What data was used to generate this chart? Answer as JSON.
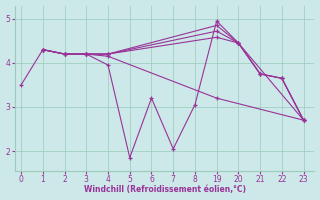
{
  "xlabel": "Windchill (Refroidissement éolien,°C)",
  "bg_color": "#cce8e8",
  "line_color": "#993399",
  "grid_color": "#99ccbb",
  "xtick_labels": [
    "0",
    "1",
    "2",
    "3",
    "4",
    "5",
    "6",
    "7",
    "8",
    "19",
    "20",
    "21",
    "22",
    "23"
  ],
  "xtick_pos": [
    0,
    1,
    2,
    3,
    4,
    5,
    6,
    7,
    8,
    9,
    10,
    11,
    12,
    13
  ],
  "yticks": [
    2,
    3,
    4,
    5
  ],
  "xlim": [
    -0.3,
    13.5
  ],
  "ylim": [
    1.55,
    5.3
  ],
  "lines": [
    {
      "x": [
        0,
        1,
        2,
        3,
        4,
        5,
        6,
        7,
        8,
        9,
        10,
        11,
        12,
        13
      ],
      "y": [
        3.5,
        4.3,
        4.2,
        4.2,
        3.95,
        1.85,
        3.2,
        2.05,
        3.05,
        4.95,
        4.45,
        3.75,
        3.65,
        2.7
      ]
    },
    {
      "x": [
        1,
        2,
        3,
        4,
        9,
        10,
        11,
        12,
        13
      ],
      "y": [
        4.3,
        4.2,
        4.2,
        4.2,
        4.85,
        4.45,
        3.75,
        3.65,
        2.7
      ]
    },
    {
      "x": [
        1,
        2,
        3,
        4,
        9,
        10,
        11,
        12,
        13
      ],
      "y": [
        4.3,
        4.2,
        4.2,
        4.2,
        4.72,
        4.45,
        3.75,
        3.65,
        2.7
      ]
    },
    {
      "x": [
        1,
        2,
        3,
        4,
        9,
        10,
        13
      ],
      "y": [
        4.3,
        4.2,
        4.2,
        4.2,
        4.58,
        4.45,
        2.7
      ]
    },
    {
      "x": [
        1,
        2,
        3,
        4,
        9,
        13
      ],
      "y": [
        4.3,
        4.2,
        4.2,
        4.15,
        3.2,
        2.7
      ]
    }
  ]
}
